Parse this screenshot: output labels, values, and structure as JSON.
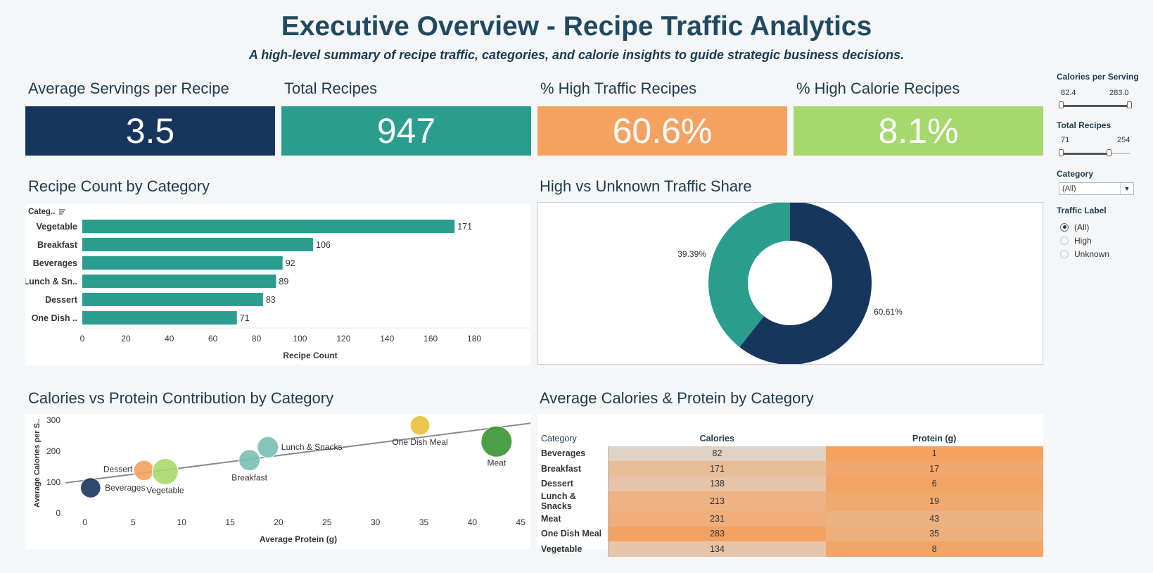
{
  "header": {
    "title": "Executive Overview - Recipe Traffic Analytics",
    "subtitle": "A high-level summary of recipe traffic, categories, and calorie insights to guide strategic business decisions."
  },
  "kpis": [
    {
      "label": "Average Servings per Recipe",
      "value": "3.5",
      "color": "#17365d"
    },
    {
      "label": "Total Recipes",
      "value": "947",
      "color": "#2a9d8f"
    },
    {
      "label": "% High Traffic Recipes",
      "value": "60.6%",
      "color": "#f4a261"
    },
    {
      "label": "% High Calorie Recipes",
      "value": "8.1%",
      "color": "#a7d86d"
    }
  ],
  "filters": {
    "calories": {
      "title": "Calories per Serving",
      "min": "82.4",
      "max": "283.0",
      "range_fraction": [
        0.0,
        1.0
      ]
    },
    "recipes": {
      "title": "Total Recipes",
      "min": "71",
      "max": "254",
      "range_fraction": [
        0.0,
        0.7
      ]
    },
    "category": {
      "title": "Category",
      "selected": "(All)"
    },
    "traffic": {
      "title": "Traffic Label",
      "options": [
        "(All)",
        "High",
        "Unknown"
      ],
      "selected": "(All)"
    }
  },
  "sections": {
    "bar_title": "Recipe Count by Category",
    "donut_title": "High vs Unknown Traffic Share",
    "scatter_title": "Calories vs Protein Contribution by Category",
    "table_title": "Average Calories & Protein by Category"
  },
  "chart_data": [
    {
      "type": "bar",
      "title": "Recipe Count by Category",
      "category_header": "Categ..",
      "categories": [
        "Vegetable",
        "Breakfast",
        "Beverages",
        "Lunch & Sn..",
        "Dessert",
        "One Dish .."
      ],
      "values": [
        171,
        106,
        92,
        89,
        83,
        71
      ],
      "xlabel": "Recipe Count",
      "xlim": [
        0,
        190
      ],
      "xticks": [
        0,
        20,
        40,
        60,
        80,
        100,
        120,
        140,
        160,
        180
      ],
      "color": "#2a9d8f"
    },
    {
      "type": "pie",
      "title": "High vs Unknown Traffic Share",
      "values": [
        60.61,
        39.39
      ],
      "labels": [
        "60.61%",
        "39.39%"
      ],
      "colors": [
        "#17365d",
        "#2a9d8f"
      ]
    },
    {
      "type": "scatter",
      "title": "Calories vs Protein Contribution by Category",
      "xlabel": "Average Protein (g)",
      "ylabel": "Average Calories per S..",
      "xlim": [
        -2,
        46
      ],
      "ylim": [
        -20,
        320
      ],
      "xticks": [
        0,
        5,
        10,
        15,
        20,
        25,
        30,
        35,
        40,
        45
      ],
      "yticks": [
        0,
        100,
        200,
        300
      ],
      "trend_line": [
        [
          -2,
          98
        ],
        [
          46,
          290
        ]
      ],
      "points": [
        {
          "label": "Beverages",
          "x": 0.6,
          "y": 82,
          "size": 0.45,
          "color": "#17365d"
        },
        {
          "label": "Dessert",
          "x": 6.1,
          "y": 138,
          "size": 0.45,
          "color": "#f4a261"
        },
        {
          "label": "Vegetable",
          "x": 8.3,
          "y": 134,
          "size": 0.75,
          "color": "#a7d86d"
        },
        {
          "label": "Breakfast",
          "x": 17,
          "y": 171,
          "size": 0.5,
          "color": "#79bfb4"
        },
        {
          "label": "Lunch & Snacks",
          "x": 18.9,
          "y": 213,
          "size": 0.5,
          "color": "#79bfb4"
        },
        {
          "label": "One Dish Meal",
          "x": 34.6,
          "y": 283,
          "size": 0.42,
          "color": "#e9c13c"
        },
        {
          "label": "Meat",
          "x": 42.5,
          "y": 231,
          "size": 1.0,
          "color": "#3a9433"
        }
      ]
    },
    {
      "type": "table",
      "title": "Average Calories & Protein by Category",
      "columns": [
        "Category",
        "Calories",
        "Protein (g)"
      ],
      "rows": [
        [
          "Beverages",
          82,
          1
        ],
        [
          "Breakfast",
          171,
          17
        ],
        [
          "Dessert",
          138,
          6
        ],
        [
          "Lunch & Snacks",
          213,
          19
        ],
        [
          "Meat",
          231,
          43
        ],
        [
          "One Dish Meal",
          283,
          35
        ],
        [
          "Vegetable",
          134,
          8
        ]
      ]
    }
  ]
}
